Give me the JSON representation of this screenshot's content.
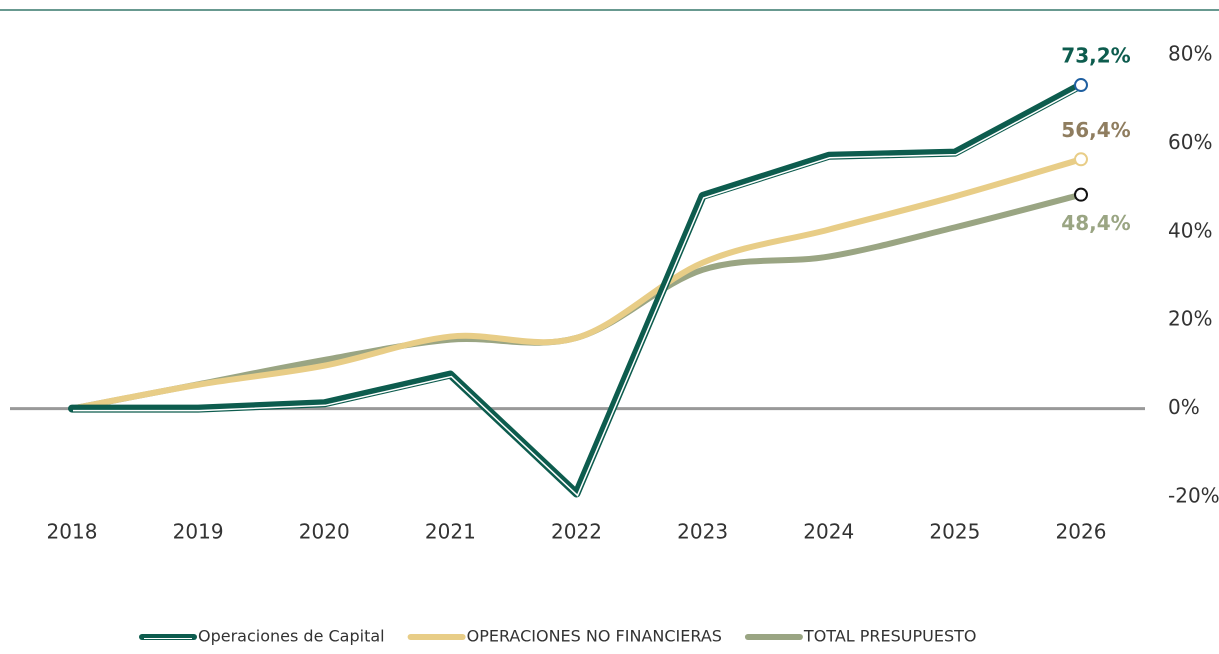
{
  "chart_data": {
    "type": "line",
    "categories": [
      "2018",
      "2019",
      "2020",
      "2021",
      "2022",
      "2023",
      "2024",
      "2025",
      "2026"
    ],
    "series": [
      {
        "name": "Operaciones de Capital",
        "color": "#0d5c4e",
        "label_color": "#0d5c4e",
        "smooth": false,
        "values": [
          0,
          0,
          1.2,
          7.7,
          -19.2,
          48.1,
          57.2,
          57.9,
          73.2
        ],
        "value_labels": [
          null,
          null,
          null,
          null,
          null,
          null,
          null,
          null,
          "73,2%"
        ]
      },
      {
        "name": "OPERACIONES NO FINANCIERAS",
        "color": "#e8cd87",
        "label_color": "#8f7d5f",
        "smooth": true,
        "values": [
          0,
          5.4,
          9.7,
          16.3,
          16,
          33,
          40.5,
          48,
          56.4
        ],
        "value_labels": [
          null,
          null,
          null,
          null,
          null,
          null,
          null,
          null,
          "56,4%"
        ]
      },
      {
        "name": "TOTAL PRESUPUESTO",
        "color": "#9aa583",
        "label_color": "#9aa583",
        "smooth": true,
        "values": [
          0,
          5.5,
          11,
          15.6,
          16,
          31.4,
          34.4,
          41,
          48.4
        ],
        "value_labels": [
          null,
          null,
          null,
          null,
          null,
          null,
          null,
          null,
          "48,4%"
        ]
      }
    ],
    "ylim": [
      -20,
      80
    ],
    "yticks": [
      {
        "value": -20,
        "label": "-20%"
      },
      {
        "value": 0,
        "label": "0%"
      },
      {
        "value": 20,
        "label": "20%"
      },
      {
        "value": 40,
        "label": "40%"
      },
      {
        "value": 60,
        "label": "60%"
      },
      {
        "value": 80,
        "label": "80%"
      }
    ]
  }
}
